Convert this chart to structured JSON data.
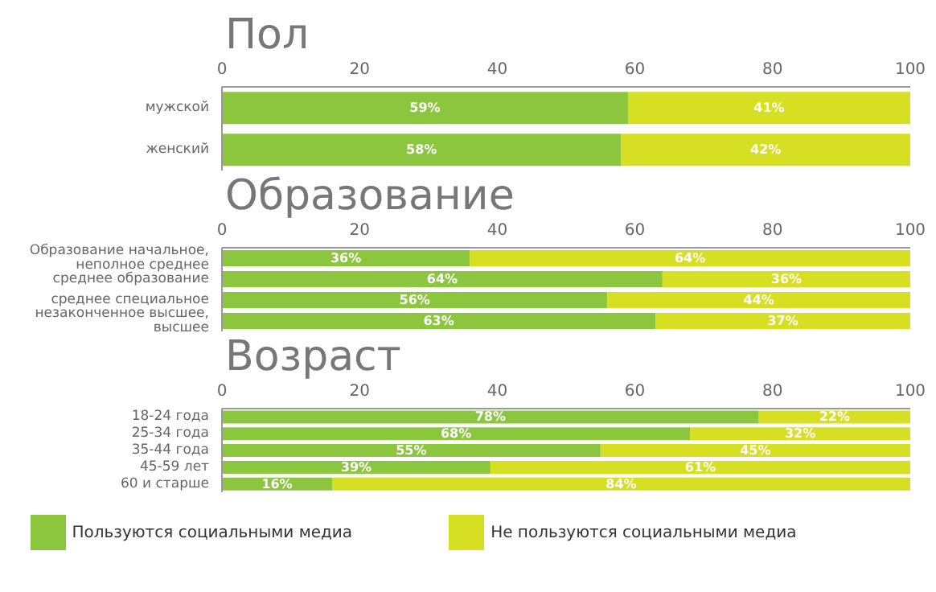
{
  "chart_data": [
    {
      "type": "bar",
      "title": "Пол",
      "orientation": "horizontal",
      "stacked": true,
      "categories": [
        "мужской",
        "женский"
      ],
      "xlim": [
        0,
        100
      ],
      "xticks": [
        0,
        20,
        40,
        60,
        80,
        100
      ],
      "legend": false,
      "series": [
        {
          "color": "#8cc63f",
          "values": [
            59,
            58
          ],
          "value_labels": [
            "59%",
            "58%"
          ]
        },
        {
          "color": "#d7df23",
          "values": [
            41,
            42
          ],
          "value_labels": [
            "41%",
            "42%"
          ]
        }
      ]
    },
    {
      "type": "bar",
      "title": "Образование",
      "orientation": "horizontal",
      "stacked": true,
      "categories": [
        "Образование начальное, неполное среднее",
        "среднее образование",
        "среднее специальное",
        "незаконченное высшее, высшее"
      ],
      "xlim": [
        0,
        100
      ],
      "xticks": [
        0,
        20,
        40,
        60,
        80,
        100
      ],
      "legend": false,
      "series": [
        {
          "color": "#8cc63f",
          "values": [
            36,
            64,
            56,
            63
          ],
          "value_labels": [
            "36%",
            "64%",
            "56%",
            "63%"
          ]
        },
        {
          "color": "#d7df23",
          "values": [
            64,
            36,
            44,
            37
          ],
          "value_labels": [
            "64%",
            "36%",
            "44%",
            "37%"
          ]
        }
      ]
    },
    {
      "type": "bar",
      "title": "Возраст",
      "orientation": "horizontal",
      "stacked": true,
      "categories": [
        "18-24 года",
        "25-34 года",
        "35-44 года",
        "45-59 лет",
        "60 и старше"
      ],
      "xlim": [
        0,
        100
      ],
      "xticks": [
        0,
        20,
        40,
        60,
        80,
        100
      ],
      "legend": "bottom",
      "series": [
        {
          "name": "Пользуются социальными медиа",
          "color": "#8cc63f",
          "values": [
            78,
            68,
            55,
            39,
            16
          ],
          "value_labels": [
            "78%",
            "68%",
            "55%",
            "39%",
            "16%"
          ]
        },
        {
          "name": "Не пользуются социальными медиа",
          "color": "#d7df23",
          "values": [
            22,
            32,
            45,
            61,
            84
          ],
          "value_labels": [
            "22%",
            "32%",
            "45%",
            "61%",
            "84%"
          ]
        }
      ]
    }
  ]
}
